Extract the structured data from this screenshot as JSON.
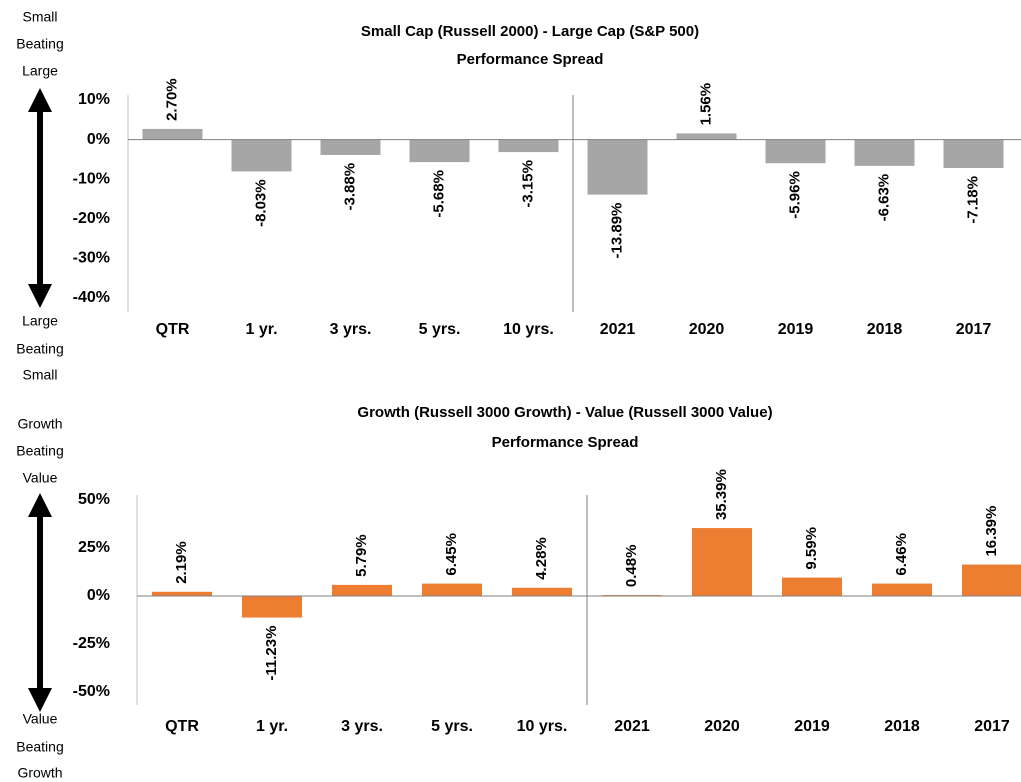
{
  "chart_data": [
    {
      "type": "bar",
      "title": "Small Cap (Russell 2000) - Large Cap (S&P 500)",
      "subtitle": "Performance Spread",
      "top_note": [
        "Small",
        "Beating",
        "Large"
      ],
      "bottom_note": [
        "Large",
        "Beating",
        "Small"
      ],
      "categories": [
        "QTR",
        "1 yr.",
        "3 yrs.",
        "5 yrs.",
        "10 yrs.",
        "2021",
        "2020",
        "2019",
        "2018",
        "2017"
      ],
      "values": [
        2.7,
        -8.03,
        -3.88,
        -5.68,
        -3.15,
        -13.89,
        1.56,
        -5.96,
        -6.63,
        -7.18
      ],
      "value_labels": [
        "2.70%",
        "-8.03%",
        "-3.88%",
        "-5.68%",
        "-3.15%",
        "-13.89%",
        "1.56%",
        "-5.96%",
        "-6.63%",
        "-7.18%"
      ],
      "color": "#a6a6a6",
      "ylim": [
        -40,
        10
      ],
      "yticks": [
        {
          "value": -40,
          "label": "-40%"
        },
        {
          "value": -30,
          "label": "-30%"
        },
        {
          "value": -20,
          "label": "-20%"
        },
        {
          "value": -10,
          "label": "-10%"
        },
        {
          "value": 0,
          "label": "0%"
        },
        {
          "value": 10,
          "label": "10%"
        }
      ]
    },
    {
      "type": "bar",
      "title": "Growth (Russell 3000 Growth) - Value (Russell 3000 Value)",
      "subtitle": "Performance Spread",
      "top_note": [
        "Growth",
        "Beating",
        "Value"
      ],
      "bottom_note": [
        "Value",
        "Beating",
        "Growth"
      ],
      "categories": [
        "QTR",
        "1 yr.",
        "3 yrs.",
        "5 yrs.",
        "10 yrs.",
        "2021",
        "2020",
        "2019",
        "2018",
        "2017"
      ],
      "values": [
        2.19,
        -11.23,
        5.79,
        6.45,
        4.28,
        0.48,
        35.39,
        9.59,
        6.46,
        16.39
      ],
      "value_labels": [
        "2.19%",
        "-11.23%",
        "5.79%",
        "6.45%",
        "4.28%",
        "0.48%",
        "35.39%",
        "9.59%",
        "6.46%",
        "16.39%"
      ],
      "color": "#ed7d31",
      "ylim": [
        -50,
        50
      ],
      "yticks": [
        {
          "value": -50,
          "label": "-50%"
        },
        {
          "value": -25,
          "label": "-25%"
        },
        {
          "value": 0,
          "label": "0%"
        },
        {
          "value": 25,
          "label": "25%"
        },
        {
          "value": 50,
          "label": "50%"
        }
      ]
    }
  ]
}
